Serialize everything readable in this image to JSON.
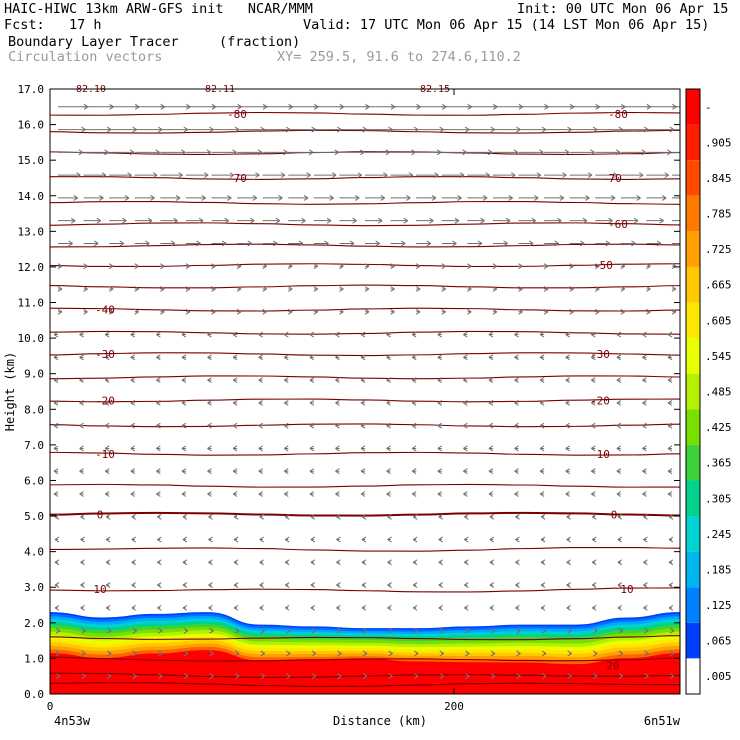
{
  "header": {
    "line1_left": "HAIC-HIWC 13km ARW-GFS init   NCAR/MMM",
    "line1_right": "Init: 00 UTC Mon 06 Apr 15",
    "line2_left": "Fcst:   17 h",
    "line2_right": "Valid: 17 UTC Mon 06 Apr 15 (14 LST Mon 06 Apr 15)",
    "line3_left": "Boundary Layer Tracer",
    "line3_units": "(fraction)",
    "line4_left": "Circulation vectors",
    "line4_xy": "XY= 259.5, 91.6 to 274.6,110.2"
  },
  "chart_data": {
    "type": "heatmap",
    "title": "Boundary Layer Tracer",
    "units": "(fraction)",
    "ylabel": "Height (km)",
    "xlabel": "Distance (km)",
    "ylim": [
      0,
      17
    ],
    "y_ticks": [
      "0.0",
      "1.0",
      "2.0",
      "3.0",
      "4.0",
      "5.0",
      "6.0",
      "7.0",
      "8.0",
      "9.0",
      "10.0",
      "11.0",
      "12.0",
      "13.0",
      "14.0",
      "15.0",
      "16.0",
      "17.0"
    ],
    "x_ticks": [
      "0",
      "200"
    ],
    "x_start_label": "4n53w",
    "x_end_label": "6n51w",
    "colorbar": {
      "labels": [
        "-",
        ".905",
        ".845",
        ".785",
        ".725",
        ".665",
        ".605",
        ".545",
        ".485",
        ".425",
        ".365",
        ".305",
        ".245",
        ".185",
        ".125",
        ".065",
        ".005"
      ],
      "colors": [
        "#ff0000",
        "#ff1e00",
        "#ff4a00",
        "#ff7800",
        "#ffa000",
        "#ffc800",
        "#ffe800",
        "#e8ff00",
        "#b4f000",
        "#78e000",
        "#3cd23c",
        "#00d28c",
        "#00d2d2",
        "#00b4f0",
        "#0082ff",
        "#0040ff",
        "#ffffff"
      ]
    },
    "contour_labels": [
      "-80",
      "-70",
      "-60",
      "-50",
      "-40",
      "-30",
      "-20",
      "-10",
      "0",
      "10",
      "20",
      "-82.10",
      "-82.11",
      "-82.15"
    ],
    "tracer_top_km": [
      2.3,
      2.15,
      2.25,
      2.3,
      1.95,
      1.9,
      1.85,
      1.85,
      1.9,
      1.95,
      1.95,
      2.15,
      2.3
    ],
    "notes_shown": [
      "Circulation vectors"
    ]
  }
}
